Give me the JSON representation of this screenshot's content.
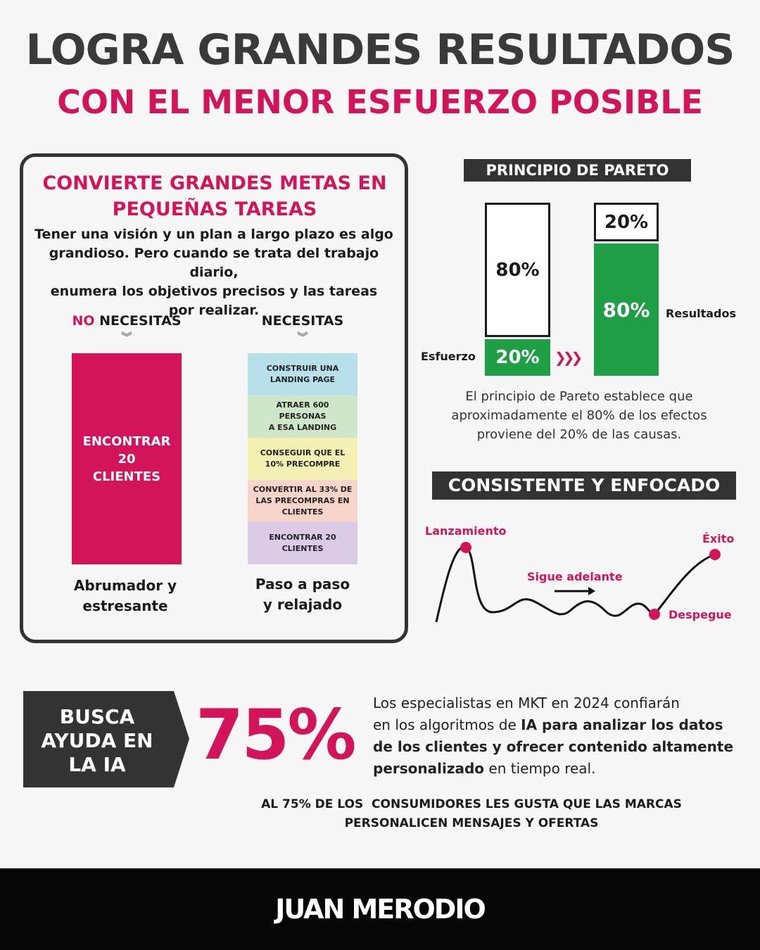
{
  "header": {
    "title": "LOGRA GRANDES RESULTADOS",
    "subtitle": "CON EL MENOR ESFUERZO POSIBLE"
  },
  "goals_card": {
    "title_line1": "CONVIERTE GRANDES METAS EN",
    "title_line2": "PEQUEÑAS TAREAS",
    "body_line1": "Tener una visión y un plan a largo plazo es algo",
    "body_line2": "grandioso. Pero cuando se trata del trabajo diario,",
    "body_line3": "enumera los objetivos precisos y las tareas",
    "body_line4": "por realizar.",
    "left_label_prefix": "NO",
    "left_label_suffix": " NECESITAS",
    "right_label": "NECESITAS",
    "big_goal_line1": "ENCONTRAR",
    "big_goal_line2": "20",
    "big_goal_line3": "CLIENTES",
    "tasks": [
      {
        "line1": "CONSTRUIR UNA",
        "line2": "LANDING PAGE",
        "line3": "",
        "color": "#b8e0ea"
      },
      {
        "line1": "ATRAER 600 PERSONAS",
        "line2": "A ESA LANDING",
        "line3": "",
        "color": "#cfe6c8"
      },
      {
        "line1": "CONSEGUIR QUE EL",
        "line2": "10% PRECOMPRE",
        "line3": "",
        "color": "#f4efb3"
      },
      {
        "line1": "CONVERTIR AL 33% DE",
        "line2": "LAS PRECOMPRAS EN",
        "line3": "CLIENTES",
        "color": "#f6d4ca"
      },
      {
        "line1": "ENCONTRAR 20",
        "line2": "CLIENTES",
        "line3": "",
        "color": "#dccbe6"
      }
    ],
    "left_footer_line1": "Abrumador y",
    "left_footer_line2": "estresante",
    "right_footer_line1": "Paso a paso",
    "right_footer_line2": "y relajado"
  },
  "pareto": {
    "tag": "PRINCIPIO DE PARETO",
    "effort_label": "Esfuerzo",
    "results_label": "Resultados",
    "effort_top": "80%",
    "effort_bottom": "20%",
    "results_top": "20%",
    "results_bottom": "80%",
    "text_line1": "El principio de Pareto establece que",
    "text_line2": "aproximadamente el 80% de los efectos",
    "text_line3": "proviene del 20% de las causas.",
    "accent_color": "#1e9e45"
  },
  "consistency": {
    "tag": "CONSISTENTE Y ENFOCADO",
    "launch": "Lanzamiento",
    "keep_going": "Sigue adelante",
    "takeoff": "Despegue",
    "success": "Éxito"
  },
  "ia": {
    "badge_line1": "BUSCA",
    "badge_line2": "AYUDA EN",
    "badge_line3": "LA IA",
    "big_number": "75%",
    "text_1": "Los especialistas en MKT en 2024 confiarán",
    "text_2a": "en los algoritmos de ",
    "text_2b": "IA para analizar los datos",
    "text_3": "de los clientes y ofrecer contenido altamente",
    "text_4a": "personalizado",
    "text_4b": " en tiempo real.",
    "note_line1": "AL 75% DE LOS  CONSUMIDORES LES GUSTA QUE LAS MARCAS",
    "note_line2": "PERSONALICEN MENSAJES Y OFERTAS"
  },
  "footer": {
    "brand": "JUAN MERODIO"
  },
  "colors": {
    "brand_pink": "#d4145a",
    "dark": "#333333"
  }
}
